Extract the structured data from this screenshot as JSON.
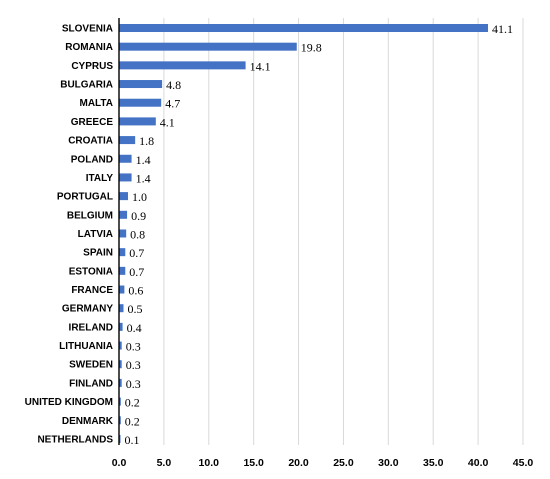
{
  "chart_data": {
    "type": "bar",
    "orientation": "horizontal",
    "categories": [
      "SLOVENIA",
      "ROMANIA",
      "CYPRUS",
      "BULGARIA",
      "MALTA",
      "GREECE",
      "CROATIA",
      "POLAND",
      "ITALY",
      "PORTUGAL",
      "BELGIUM",
      "LATVIA",
      "SPAIN",
      "ESTONIA",
      "FRANCE",
      "GERMANY",
      "IRELAND",
      "LITHUANIA",
      "SWEDEN",
      "FINLAND",
      "UNITED KINGDOM",
      "DENMARK",
      "NETHERLANDS"
    ],
    "values": [
      41.1,
      19.8,
      14.1,
      4.8,
      4.7,
      4.1,
      1.8,
      1.4,
      1.4,
      1.0,
      0.9,
      0.8,
      0.7,
      0.7,
      0.6,
      0.5,
      0.4,
      0.3,
      0.3,
      0.3,
      0.2,
      0.2,
      0.1
    ],
    "value_labels": [
      "41.1",
      "19.8",
      "14.1",
      "4.8",
      "4.7",
      "4.1",
      "1.8",
      "1.4",
      "1.4",
      "1.0",
      "0.9",
      "0.8",
      "0.7",
      "0.7",
      "0.6",
      "0.5",
      "0.4",
      "0.3",
      "0.3",
      "0.3",
      "0.2",
      "0.2",
      "0.1"
    ],
    "x_ticks": [
      "0.0",
      "5.0",
      "10.0",
      "15.0",
      "20.0",
      "25.0",
      "30.0",
      "35.0",
      "40.0",
      "45.0"
    ],
    "xlim": [
      0,
      45
    ],
    "grid": "vertical",
    "bar_color": "#4472c4",
    "title": "",
    "xlabel": "",
    "ylabel": ""
  }
}
